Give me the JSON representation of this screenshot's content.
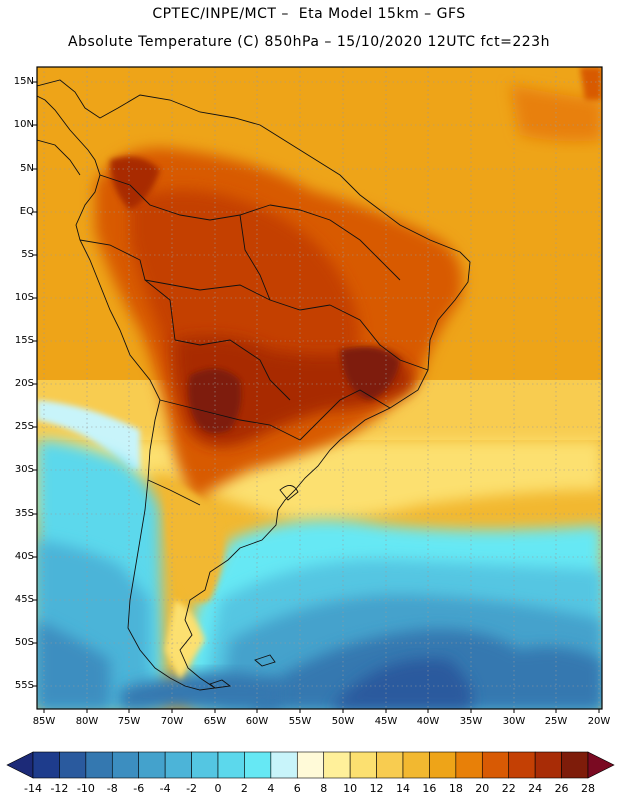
{
  "header": {
    "title_line1": "CPTEC/INPE/MCT –  Eta Model 15km – GFS",
    "title_line2": "Absolute Temperature (C) 850hPa – 15/10/2020 12UTC fct=223h"
  },
  "map": {
    "region": "South America",
    "variable": "Absolute Temperature (C)",
    "level": "850hPa",
    "lat_labels": [
      "15N",
      "10N",
      "5N",
      "EQ",
      "5S",
      "10S",
      "15S",
      "20S",
      "25S",
      "30S",
      "35S",
      "40S",
      "45S",
      "50S",
      "55S"
    ],
    "lon_labels": [
      "85W",
      "80W",
      "75W",
      "70W",
      "65W",
      "60W",
      "55W",
      "50W",
      "45W",
      "40W",
      "35W",
      "30W",
      "25W",
      "20W"
    ]
  },
  "colorbar": {
    "labels": [
      "-14",
      "-12",
      "-10",
      "-8",
      "-6",
      "-4",
      "-2",
      "0",
      "2",
      "4",
      "6",
      "8",
      "10",
      "12",
      "14",
      "16",
      "18",
      "20",
      "22",
      "24",
      "26",
      "28"
    ],
    "colors": [
      "#1e3c8c",
      "#2a5a9e",
      "#3478b0",
      "#3c8ec0",
      "#44a2cc",
      "#4cb4d8",
      "#54c6e2",
      "#5cd8ec",
      "#66e8f4",
      "#c8f4fa",
      "#fffad8",
      "#fff09a",
      "#fce070",
      "#f8cc50",
      "#f2b830",
      "#eea418",
      "#e88008",
      "#d85a04",
      "#c44004",
      "#a82c06",
      "#7e1c0a"
    ],
    "lower_arrow_color": "#1c2a78",
    "upper_arrow_color": "#7a0a22"
  }
}
